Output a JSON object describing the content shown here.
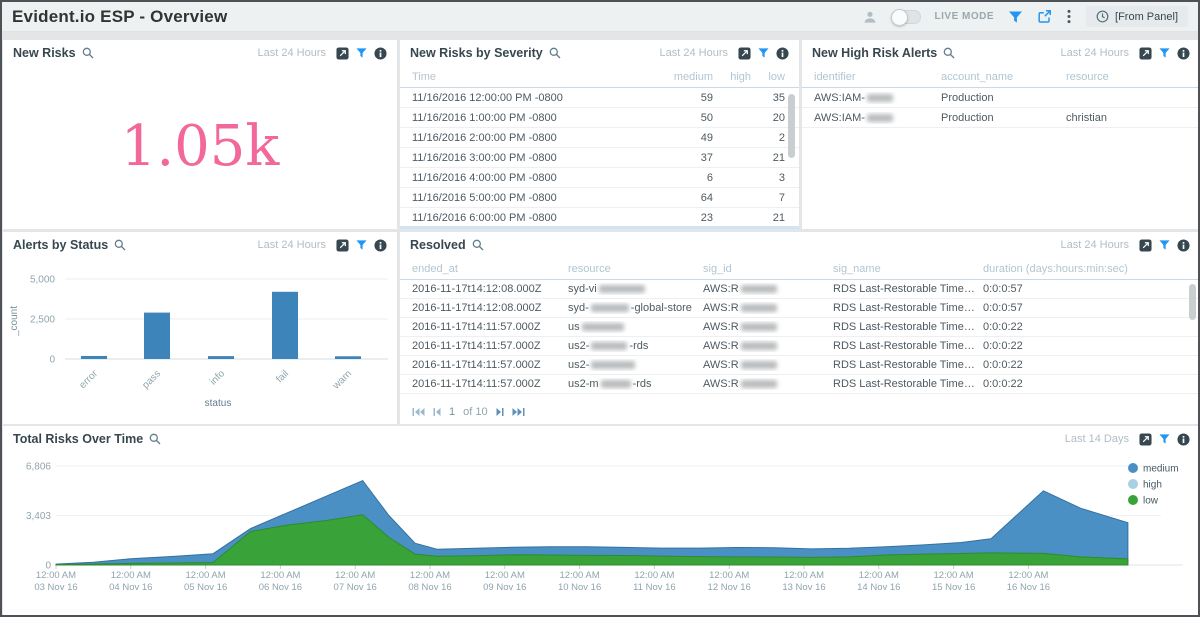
{
  "topbar": {
    "title": "Evident.io ESP - Overview",
    "live_mode_label": "LIVE MODE",
    "time_range_label": "[From Panel]"
  },
  "colors": {
    "accent_blue": "#2196f3",
    "icon_dark": "#37474f",
    "bar_blue": "#3c84ba",
    "area_blue": "#4b90c5",
    "area_green": "#39a339",
    "legend_high_blue": "#a9cfe5",
    "big_number_pink": "#f2689b"
  },
  "panels": {
    "new_risks": {
      "title": "New Risks",
      "range": "Last 24 Hours",
      "value": "1.05k",
      "value_color": "#f2689b"
    },
    "new_risks_by_severity": {
      "title": "New Risks by Severity",
      "range": "Last 24 Hours",
      "columns": [
        "Time",
        "medium",
        "high",
        "low"
      ],
      "rows": [
        [
          "11/16/2016 12:00:00 PM -0800",
          "59",
          "",
          "35"
        ],
        [
          "11/16/2016 1:00:00 PM -0800",
          "50",
          "",
          "20"
        ],
        [
          "11/16/2016 2:00:00 PM -0800",
          "49",
          "",
          "2"
        ],
        [
          "11/16/2016 3:00:00 PM -0800",
          "37",
          "",
          "21"
        ],
        [
          "11/16/2016 4:00:00 PM -0800",
          "6",
          "",
          "3"
        ],
        [
          "11/16/2016 5:00:00 PM -0800",
          "64",
          "",
          "7"
        ],
        [
          "11/16/2016 6:00:00 PM -0800",
          "23",
          "",
          "21"
        ]
      ]
    },
    "new_high_risk_alerts": {
      "title": "New High Risk Alerts",
      "range": "Last 24 Hours",
      "columns": [
        "identifier",
        "account_name",
        "resource"
      ],
      "rows": [
        [
          [
            "AWS:IAM-",
            {
              "blur": 26
            }
          ],
          "Production",
          ""
        ],
        [
          [
            "AWS:IAM-",
            {
              "blur": 26
            }
          ],
          "Production",
          "christian"
        ]
      ]
    },
    "alerts_by_status": {
      "title": "Alerts by Status",
      "range": "Last 24 Hours"
    },
    "resolved": {
      "title": "Resolved",
      "range": "Last 24 Hours",
      "columns": [
        "ended_at",
        "resource",
        "sig_id",
        "sig_name",
        "duration (days:hours:min:sec)"
      ],
      "rows": [
        [
          "2016-11-17t14:12:08.000Z",
          [
            "syd-vi",
            {
              "blur": 46
            }
          ],
          [
            "AWS:R",
            {
              "blur": 36
            }
          ],
          "RDS Last-Restorable Time Check",
          "0:0:0:57"
        ],
        [
          "2016-11-17t14:12:08.000Z",
          [
            "syd-",
            {
              "blur": 38
            },
            "-global-store"
          ],
          [
            "AWS:R",
            {
              "blur": 36
            }
          ],
          "RDS Last-Restorable Time Check",
          "0:0:0:57"
        ],
        [
          "2016-11-17t14:11:57.000Z",
          [
            "us",
            {
              "blur": 42
            }
          ],
          [
            "AWS:R",
            {
              "blur": 36
            }
          ],
          "RDS Last-Restorable Time Check",
          "0:0:0:22"
        ],
        [
          "2016-11-17t14:11:57.000Z",
          [
            "us2-",
            {
              "blur": 36
            },
            "-rds"
          ],
          [
            "AWS:R",
            {
              "blur": 36
            }
          ],
          "RDS Last-Restorable Time Check",
          "0:0:0:22"
        ],
        [
          "2016-11-17t14:11:57.000Z",
          [
            "us2-",
            {
              "blur": 44
            }
          ],
          [
            "AWS:R",
            {
              "blur": 36
            }
          ],
          "RDS Last-Restorable Time Check",
          "0:0:0:22"
        ],
        [
          "2016-11-17t14:11:57.000Z",
          [
            "us2-m",
            {
              "blur": 30
            },
            "-rds"
          ],
          [
            "AWS:R",
            {
              "blur": 36
            }
          ],
          "RDS Last-Restorable Time Check",
          "0:0:0:22"
        ]
      ],
      "pager": {
        "page": "1",
        "of_label": "of 10"
      }
    },
    "total_risks_over_time": {
      "title": "Total Risks Over Time",
      "range": "Last 14 Days"
    }
  },
  "chart_data": [
    {
      "id": "alerts_by_status",
      "type": "bar",
      "title": "Alerts by Status",
      "categories": [
        "error",
        "pass",
        "info",
        "fail",
        "warn"
      ],
      "values": [
        190,
        2900,
        180,
        4200,
        170
      ],
      "xlabel": "status",
      "ylabel": "_count",
      "ylim": [
        0,
        5000
      ],
      "yticks": [
        0,
        2500,
        5000
      ],
      "ytick_labels": [
        "0",
        "2,500",
        "5,000"
      ],
      "bar_color": "#3c84ba",
      "grid": "horizontal"
    },
    {
      "id": "total_risks_over_time",
      "type": "area",
      "title": "Total Risks Over Time",
      "x_unit": "days since 03 Nov 16 12:00 AM",
      "xlim": [
        0,
        14.33
      ],
      "ylim": [
        0,
        6806
      ],
      "yticks": [
        0,
        3403,
        6806
      ],
      "ytick_labels": [
        "0",
        "3,403",
        "6,806"
      ],
      "xtick_labels": [
        [
          "12:00 AM",
          "03 Nov 16"
        ],
        [
          "12:00 AM",
          "04 Nov 16"
        ],
        [
          "12:00 AM",
          "05 Nov 16"
        ],
        [
          "12:00 AM",
          "06 Nov 16"
        ],
        [
          "12:00 AM",
          "07 Nov 16"
        ],
        [
          "12:00 AM",
          "08 Nov 16"
        ],
        [
          "12:00 AM",
          "09 Nov 16"
        ],
        [
          "12:00 AM",
          "10 Nov 16"
        ],
        [
          "12:00 AM",
          "11 Nov 16"
        ],
        [
          "12:00 AM",
          "12 Nov 16"
        ],
        [
          "12:00 AM",
          "13 Nov 16"
        ],
        [
          "12:00 AM",
          "14 Nov 16"
        ],
        [
          "12:00 AM",
          "15 Nov 16"
        ],
        [
          "12:00 AM",
          "16 Nov 16"
        ]
      ],
      "legend": [
        "medium",
        "high",
        "low"
      ],
      "legend_position": "right",
      "series": [
        {
          "name": "medium",
          "color": "#4b90c5",
          "stroke": "#35719f",
          "points": [
            [
              0,
              60
            ],
            [
              0.5,
              190
            ],
            [
              1,
              430
            ],
            [
              1.6,
              600
            ],
            [
              2.1,
              780
            ],
            [
              2.6,
              2500
            ],
            [
              3.1,
              3600
            ],
            [
              3.6,
              4700
            ],
            [
              4.1,
              5800
            ],
            [
              4.45,
              3400
            ],
            [
              4.8,
              1500
            ],
            [
              5.1,
              1080
            ],
            [
              5.6,
              1150
            ],
            [
              6.1,
              1220
            ],
            [
              6.6,
              1260
            ],
            [
              7.1,
              1260
            ],
            [
              7.6,
              1210
            ],
            [
              8.1,
              1160
            ],
            [
              8.6,
              1160
            ],
            [
              9.1,
              1200
            ],
            [
              9.6,
              1190
            ],
            [
              10.1,
              1110
            ],
            [
              10.6,
              1150
            ],
            [
              11.1,
              1260
            ],
            [
              11.6,
              1380
            ],
            [
              12.1,
              1550
            ],
            [
              12.5,
              1800
            ],
            [
              13.2,
              5100
            ],
            [
              13.7,
              3900
            ],
            [
              14.33,
              2900
            ]
          ]
        },
        {
          "name": "high",
          "color": "#a9cfe5",
          "stroke": "#8fb8d4",
          "points": [
            [
              0,
              10
            ],
            [
              7,
              12
            ],
            [
              14.33,
              8
            ]
          ]
        },
        {
          "name": "low",
          "color": "#39a339",
          "stroke": "#2c8c2c",
          "points": [
            [
              0,
              30
            ],
            [
              0.5,
              70
            ],
            [
              1,
              110
            ],
            [
              1.6,
              140
            ],
            [
              2.1,
              170
            ],
            [
              2.6,
              2300
            ],
            [
              3.1,
              2750
            ],
            [
              3.6,
              3050
            ],
            [
              4.1,
              3450
            ],
            [
              4.45,
              1900
            ],
            [
              4.8,
              750
            ],
            [
              5.1,
              600
            ],
            [
              5.6,
              640
            ],
            [
              6.1,
              700
            ],
            [
              6.6,
              690
            ],
            [
              7.1,
              660
            ],
            [
              7.6,
              650
            ],
            [
              8.1,
              610
            ],
            [
              8.6,
              580
            ],
            [
              9.1,
              560
            ],
            [
              9.6,
              550
            ],
            [
              10.1,
              520
            ],
            [
              10.6,
              560
            ],
            [
              11.1,
              690
            ],
            [
              11.6,
              750
            ],
            [
              12.1,
              790
            ],
            [
              12.5,
              830
            ],
            [
              13.2,
              800
            ],
            [
              13.7,
              560
            ],
            [
              14.33,
              420
            ]
          ]
        }
      ]
    }
  ]
}
